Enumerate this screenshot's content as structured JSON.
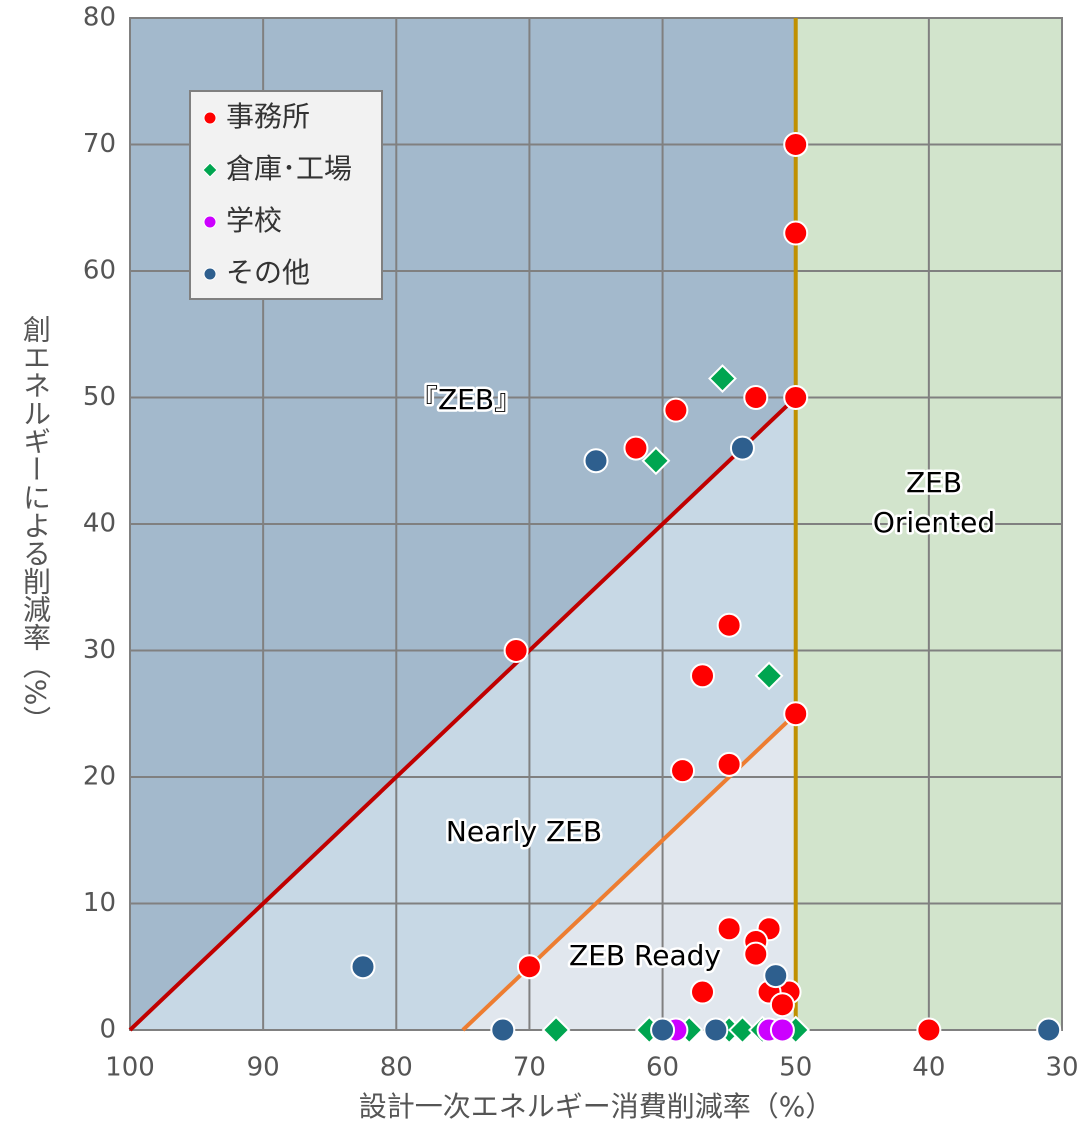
{
  "chart_data": {
    "type": "scatter",
    "x_label": "設計一次エネルギー消費削減率（%）",
    "y_label": "創エネルギーによる削減率（%）",
    "xlim": [
      100,
      30
    ],
    "xticks": [
      100,
      90,
      80,
      70,
      60,
      50,
      40,
      30
    ],
    "ylim": [
      0,
      80
    ],
    "yticks": [
      0,
      10,
      20,
      30,
      40,
      50,
      60,
      70,
      80
    ],
    "grid": true,
    "legend": "upper left",
    "regions": [
      {
        "color": "#a3b9cc",
        "points": [
          [
            100,
            0
          ],
          [
            50,
            50
          ],
          [
            50,
            80
          ],
          [
            100,
            80
          ]
        ]
      },
      {
        "color": "#c7d8e5",
        "points": [
          [
            100,
            0
          ],
          [
            75,
            0
          ],
          [
            50,
            25
          ],
          [
            50,
            50
          ]
        ]
      },
      {
        "color": "#e1e7ee",
        "points": [
          [
            75,
            0
          ],
          [
            50,
            0
          ],
          [
            50,
            25
          ]
        ]
      },
      {
        "color": "#d2e4cc",
        "points": [
          [
            50,
            0
          ],
          [
            30,
            0
          ],
          [
            30,
            80
          ],
          [
            50,
            80
          ]
        ]
      }
    ],
    "lines": [
      {
        "color": "#c00000",
        "points": [
          [
            100,
            0
          ],
          [
            50,
            50
          ]
        ]
      },
      {
        "color": "#ed7d31",
        "points": [
          [
            75,
            0
          ],
          [
            50,
            25
          ]
        ]
      },
      {
        "color": "#c09000",
        "points": [
          [
            50,
            0
          ],
          [
            50,
            80
          ]
        ]
      }
    ],
    "annotations": [
      "『ZEB』",
      "Nearly ZEB",
      "ZEB Ready",
      "ZEB",
      "Oriented"
    ],
    "series": [
      {
        "name": "事務所",
        "color": "#ff0000",
        "marker": "circle",
        "x": [
          50,
          50,
          50,
          53,
          59,
          62,
          71,
          55,
          57,
          50,
          55,
          58.5,
          55,
          52,
          53,
          53,
          70,
          57,
          50.5,
          52,
          51,
          40
        ],
        "values": [
          70,
          63,
          50,
          50,
          49,
          46,
          30,
          32,
          28,
          25,
          21,
          20.5,
          8,
          8,
          7,
          6,
          5,
          3,
          3,
          3,
          2,
          0
        ]
      },
      {
        "name": "倉庫･工場",
        "color": "#00a550",
        "marker": "diamond",
        "x": [
          55.5,
          60.5,
          52,
          68,
          61,
          58,
          55,
          54,
          52.5,
          50
        ],
        "values": [
          51.5,
          45,
          28,
          0,
          0,
          0,
          0,
          0,
          0,
          0
        ]
      },
      {
        "name": "学校",
        "color": "#cc00ff",
        "marker": "circle",
        "x": [
          59,
          52,
          51
        ],
        "values": [
          0,
          0,
          0
        ]
      },
      {
        "name": "その他",
        "color": "#2e5f8e",
        "marker": "circle",
        "x": [
          65,
          54,
          82.5,
          51.5,
          72,
          60,
          56,
          31
        ],
        "values": [
          45,
          46,
          5,
          4.3,
          0,
          0,
          0,
          0
        ]
      }
    ]
  }
}
